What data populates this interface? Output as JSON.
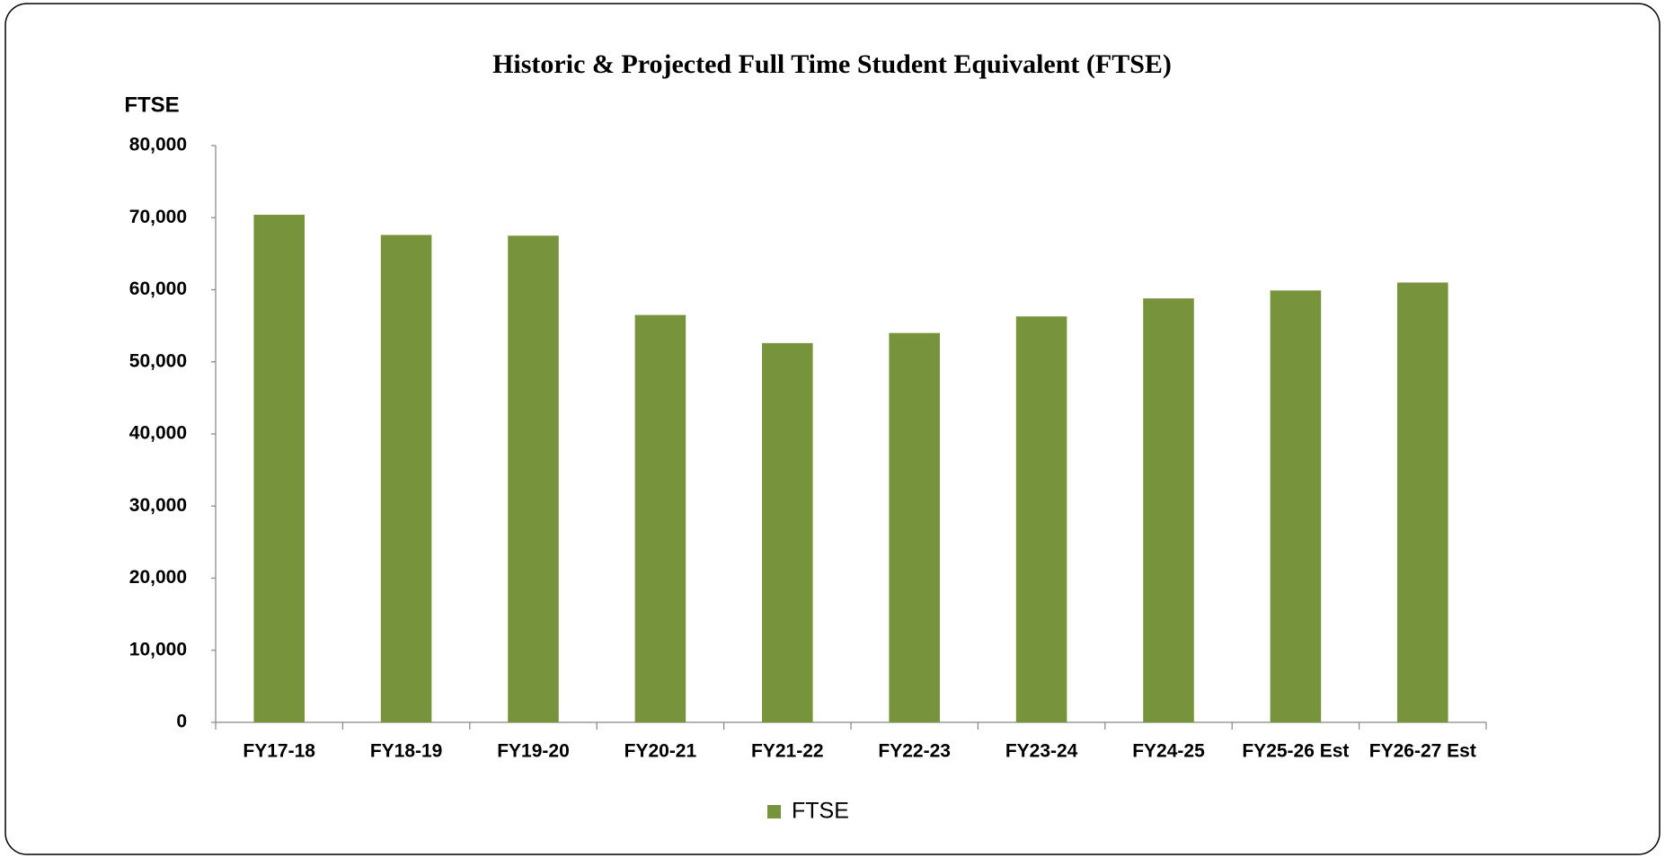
{
  "chart_data": {
    "type": "bar",
    "title": "Historic & Projected Full Time Student Equivalent (FTSE)",
    "y_label": "FTSE",
    "categories": [
      "FY17-18",
      "FY18-19",
      "FY19-20",
      "FY20-21",
      "FY21-22",
      "FY22-23",
      "FY23-24",
      "FY24-25",
      "FY25-26 Est",
      "FY26-27 Est"
    ],
    "series": [
      {
        "name": "FTSE",
        "color": "#77933c",
        "values": [
          70400,
          67600,
          67500,
          56500,
          52600,
          54000,
          56300,
          58800,
          59900,
          61000
        ]
      }
    ],
    "ylim": [
      0,
      80000
    ],
    "yticks": [
      0,
      {
        "value": 10000,
        "label": "10,000"
      },
      {
        "value": 20000,
        "label": "20,000"
      },
      {
        "value": 30000,
        "label": "30,000"
      },
      {
        "value": 40000,
        "label": "40,000"
      },
      {
        "value": 50000,
        "label": "50,000"
      },
      {
        "value": 60000,
        "label": "60,000"
      },
      {
        "value": 70000,
        "label": "70,000"
      },
      {
        "value": 80000,
        "label": "80,000"
      }
    ],
    "grid": false,
    "legend": "bottom"
  }
}
